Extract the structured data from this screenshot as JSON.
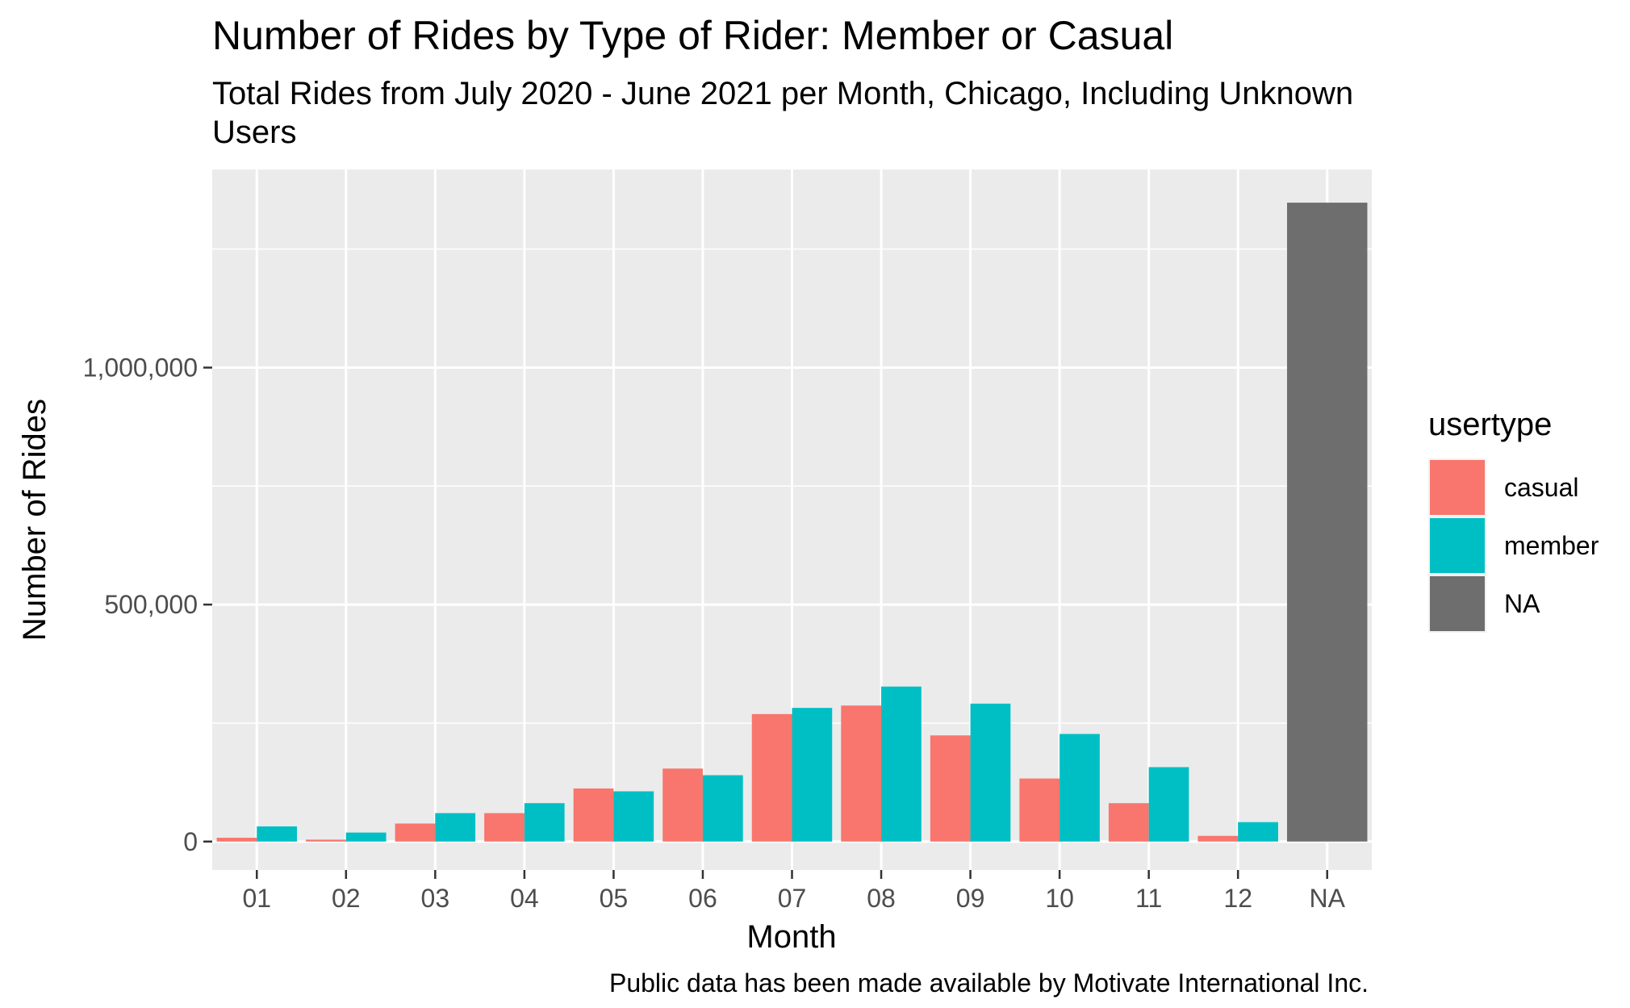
{
  "chart_data": {
    "type": "bar",
    "title": "Number of Rides by Type of Rider: Member or Casual",
    "subtitle": "Total Rides from July 2020 - June 2021 per Month, Chicago, Including Unknown Users",
    "caption": "Public data has been made available by Motivate International Inc.",
    "xlabel": "Month",
    "ylabel": "Number of Rides",
    "categories": [
      "01",
      "02",
      "03",
      "04",
      "05",
      "06",
      "07",
      "08",
      "09",
      "10",
      "11",
      "12",
      "NA"
    ],
    "series": [
      {
        "name": "casual",
        "color": "#F8766D",
        "values": [
          8000,
          4000,
          38000,
          60000,
          112000,
          154000,
          269000,
          287000,
          224000,
          133000,
          81000,
          12000,
          null
        ]
      },
      {
        "name": "member",
        "color": "#00BFC4",
        "values": [
          32000,
          19000,
          60000,
          81000,
          106000,
          140000,
          282000,
          327000,
          291000,
          227000,
          157000,
          41000,
          null
        ]
      },
      {
        "name": "NA",
        "color": "#6E6E6E",
        "values": [
          null,
          null,
          null,
          null,
          null,
          null,
          null,
          null,
          null,
          null,
          null,
          null,
          1348000
        ]
      }
    ],
    "y_ticks": [
      0,
      500000,
      1000000
    ],
    "y_tick_labels": [
      "0",
      "500,000",
      "1,000,000"
    ],
    "ylim": [
      -60000,
      1418000
    ],
    "legend": {
      "title": "usertype",
      "position": "right"
    },
    "grid": true
  }
}
